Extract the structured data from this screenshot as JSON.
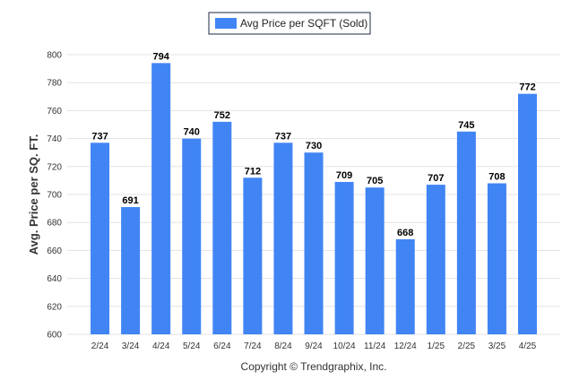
{
  "chart_data": {
    "type": "bar",
    "categories": [
      "2/24",
      "3/24",
      "4/24",
      "5/24",
      "6/24",
      "7/24",
      "8/24",
      "9/24",
      "10/24",
      "11/24",
      "12/24",
      "1/25",
      "2/25",
      "3/25",
      "4/25"
    ],
    "series": [
      {
        "name": "Avg Price per SQFT (Sold)",
        "values": [
          737,
          691,
          794,
          740,
          752,
          712,
          737,
          730,
          709,
          705,
          668,
          707,
          745,
          708,
          772
        ]
      }
    ],
    "ylabel": "Avg. Price per SQ. FT.",
    "xlabel": "",
    "ylim": [
      600,
      800
    ],
    "yticks": [
      600,
      620,
      640,
      660,
      680,
      700,
      720,
      740,
      760,
      780,
      800
    ],
    "grid": true,
    "legend": "top-center",
    "colors": {
      "bar": "#4185f4"
    }
  },
  "footer": {
    "copyright": "Copyright © Trendgraphix, Inc."
  }
}
